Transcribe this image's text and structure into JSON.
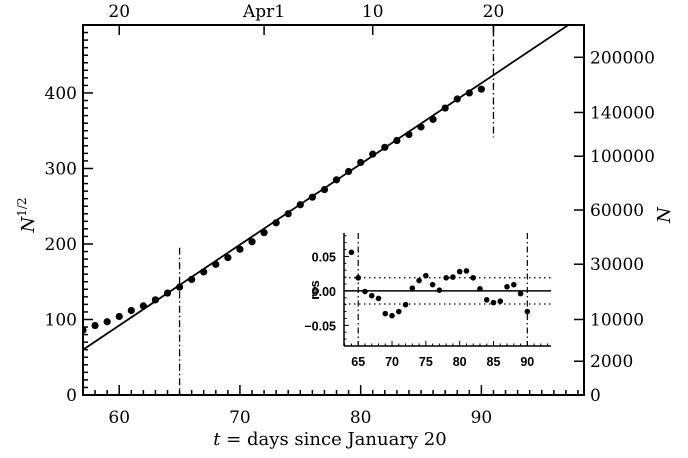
{
  "chart_data": [
    {
      "type": "scatter",
      "title": "",
      "xlabel": "t = days since January 20",
      "ylabel": "N^{1/2}",
      "ylabel_right": "N",
      "xlim": [
        57,
        98.5
      ],
      "ylim": [
        0,
        490
      ],
      "x_ticks": [
        60,
        70,
        80,
        90
      ],
      "x_tick_labels": [
        "60",
        "70",
        "80",
        "90"
      ],
      "y_ticks": [
        0,
        100,
        200,
        300,
        400
      ],
      "y_tick_labels": [
        "0",
        "100",
        "200",
        "300",
        "400"
      ],
      "top_axis": {
        "ticks": [
          60,
          72,
          81,
          91
        ],
        "labels": [
          "20",
          "Apr1",
          "10",
          "20"
        ]
      },
      "right_axis": {
        "ticks_N": [
          0,
          2000,
          10000,
          30000,
          60000,
          100000,
          140000,
          200000
        ],
        "labels": [
          "0",
          "2000",
          "10000",
          "30000",
          "60000",
          "100000",
          "140000",
          "200000"
        ]
      },
      "grid": false,
      "series": [
        {
          "name": "data",
          "style": "points",
          "x": [
            57,
            58,
            59,
            60,
            61,
            62,
            63,
            64,
            65,
            66,
            67,
            68,
            69,
            70,
            71,
            72,
            73,
            74,
            75,
            76,
            77,
            78,
            79,
            80,
            81,
            82,
            83,
            84,
            85,
            86,
            87,
            88,
            89,
            90
          ],
          "y": [
            86,
            92,
            97,
            104,
            112,
            118,
            126,
            135,
            143,
            153,
            163,
            173,
            182,
            193,
            203,
            215,
            228,
            240,
            252,
            262,
            272,
            285,
            296,
            308,
            319,
            328,
            337,
            345,
            355,
            365,
            380,
            392,
            400,
            405
          ]
        },
        {
          "name": "linear fit",
          "style": "line",
          "x": [
            57,
            97.2
          ],
          "y": [
            60,
            490
          ]
        }
      ],
      "annotations": [
        {
          "type": "vline",
          "style": "dash-dot",
          "x": 65,
          "y_from": 195,
          "y_to": 0
        },
        {
          "type": "vline",
          "style": "dash-dot",
          "x": 91,
          "y_from": 490,
          "y_to": 341
        }
      ]
    },
    {
      "type": "scatter",
      "title": "",
      "xlabel": "",
      "ylabel": "res",
      "xlim": [
        62.9,
        93.5
      ],
      "ylim": [
        -0.08,
        0.084
      ],
      "x_ticks": [
        65,
        70,
        75,
        80,
        85,
        90
      ],
      "x_tick_labels": [
        "65",
        "70",
        "75",
        "80",
        "85",
        "90"
      ],
      "y_ticks": [
        0.05,
        0.0,
        -0.05
      ],
      "y_tick_labels": [
        "0.05",
        "0.00",
        "−0.05"
      ],
      "grid": false,
      "series": [
        {
          "name": "residuals",
          "style": "points",
          "x": [
            64,
            65,
            66,
            67,
            68,
            69,
            70,
            71,
            72,
            73,
            74,
            75,
            76,
            77,
            78,
            79,
            80,
            81,
            82,
            83,
            84,
            85,
            86,
            87,
            88,
            89,
            90
          ],
          "y": [
            0.056,
            0.019,
            -0.001,
            -0.007,
            -0.011,
            -0.033,
            -0.036,
            -0.03,
            -0.02,
            0.004,
            0.015,
            0.022,
            0.009,
            0.001,
            0.019,
            0.02,
            0.028,
            0.029,
            0.019,
            0.003,
            -0.013,
            -0.017,
            -0.015,
            0.006,
            0.009,
            -0.004,
            -0.03
          ]
        }
      ],
      "annotations": [
        {
          "type": "hline",
          "style": "solid",
          "y": 0.0
        },
        {
          "type": "hline",
          "style": "dotted",
          "y": 0.019
        },
        {
          "type": "hline",
          "style": "dotted",
          "y": -0.019
        },
        {
          "type": "vline",
          "style": "dash-dot",
          "x": 65
        },
        {
          "type": "vline",
          "style": "dash-dot",
          "x": 90
        }
      ]
    }
  ]
}
